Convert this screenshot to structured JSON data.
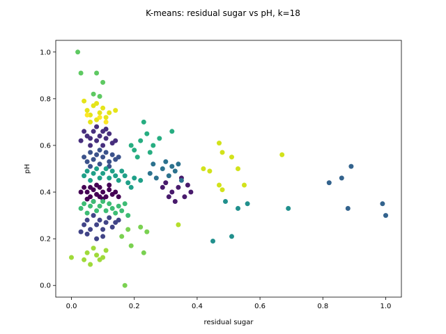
{
  "chart_data": {
    "type": "scatter",
    "title": "K-means: residual sugar vs pH, k=18",
    "xlabel": "residual sugar",
    "ylabel": "pH",
    "xlim": [
      -0.05,
      1.05
    ],
    "ylim": [
      -0.05,
      1.05
    ],
    "xticks": [
      0.0,
      0.2,
      0.4,
      0.6,
      0.8,
      1.0
    ],
    "xtick_labels": [
      "0.0",
      "0.2",
      "0.4",
      "0.6",
      "0.8",
      "1.0"
    ],
    "yticks": [
      0.0,
      0.2,
      0.4,
      0.6,
      0.8,
      1.0
    ],
    "ytick_labels": [
      "0.0",
      "0.2",
      "0.4",
      "0.6",
      "0.8",
      "1.0"
    ],
    "grid": false,
    "legend": "none",
    "colormap": "viridis",
    "clusters": [
      {
        "color": "#440154",
        "points": [
          [
            0.04,
            0.42
          ],
          [
            0.05,
            0.4
          ],
          [
            0.06,
            0.38
          ],
          [
            0.07,
            0.41
          ],
          [
            0.08,
            0.39
          ],
          [
            0.09,
            0.42
          ],
          [
            0.1,
            0.4
          ],
          [
            0.11,
            0.38
          ],
          [
            0.12,
            0.41
          ],
          [
            0.13,
            0.39
          ],
          [
            0.14,
            0.4
          ],
          [
            0.03,
            0.4
          ],
          [
            0.06,
            0.42
          ],
          [
            0.09,
            0.38
          ],
          [
            0.12,
            0.43
          ],
          [
            0.1,
            0.37
          ],
          [
            0.05,
            0.37
          ],
          [
            0.08,
            0.43
          ],
          [
            0.15,
            0.38
          ],
          [
            0.07,
            0.36
          ]
        ]
      },
      {
        "color": "#481a6c",
        "points": [
          [
            0.3,
            0.44
          ],
          [
            0.32,
            0.4
          ],
          [
            0.34,
            0.42
          ],
          [
            0.36,
            0.38
          ],
          [
            0.38,
            0.4
          ],
          [
            0.33,
            0.36
          ],
          [
            0.35,
            0.46
          ],
          [
            0.37,
            0.43
          ],
          [
            0.31,
            0.38
          ],
          [
            0.29,
            0.42
          ]
        ]
      },
      {
        "color": "#472f7d",
        "points": [
          [
            0.03,
            0.62
          ],
          [
            0.05,
            0.64
          ],
          [
            0.06,
            0.6
          ],
          [
            0.07,
            0.66
          ],
          [
            0.08,
            0.62
          ],
          [
            0.09,
            0.64
          ],
          [
            0.1,
            0.6
          ],
          [
            0.11,
            0.63
          ],
          [
            0.12,
            0.65
          ],
          [
            0.13,
            0.61
          ],
          [
            0.04,
            0.66
          ],
          [
            0.08,
            0.68
          ],
          [
            0.11,
            0.67
          ],
          [
            0.06,
            0.63
          ],
          [
            0.14,
            0.62
          ],
          [
            0.1,
            0.66
          ]
        ]
      },
      {
        "color": "#414487",
        "points": [
          [
            0.04,
            0.26
          ],
          [
            0.05,
            0.28
          ],
          [
            0.06,
            0.24
          ],
          [
            0.07,
            0.3
          ],
          [
            0.08,
            0.26
          ],
          [
            0.09,
            0.28
          ],
          [
            0.1,
            0.24
          ],
          [
            0.11,
            0.27
          ],
          [
            0.12,
            0.29
          ],
          [
            0.13,
            0.25
          ],
          [
            0.14,
            0.27
          ],
          [
            0.05,
            0.22
          ],
          [
            0.08,
            0.2
          ],
          [
            0.1,
            0.21
          ],
          [
            0.15,
            0.28
          ],
          [
            0.03,
            0.23
          ]
        ]
      },
      {
        "color": "#3b528b",
        "points": [
          [
            0.04,
            0.55
          ],
          [
            0.05,
            0.53
          ],
          [
            0.06,
            0.57
          ],
          [
            0.07,
            0.54
          ],
          [
            0.08,
            0.56
          ],
          [
            0.09,
            0.52
          ],
          [
            0.1,
            0.55
          ],
          [
            0.11,
            0.57
          ],
          [
            0.12,
            0.53
          ],
          [
            0.13,
            0.56
          ],
          [
            0.14,
            0.54
          ],
          [
            0.06,
            0.51
          ],
          [
            0.09,
            0.58
          ],
          [
            0.12,
            0.51
          ],
          [
            0.15,
            0.55
          ]
        ]
      },
      {
        "color": "#33638d",
        "points": [
          [
            0.82,
            0.44
          ],
          [
            0.86,
            0.46
          ],
          [
            0.89,
            0.51
          ],
          [
            0.88,
            0.33
          ],
          [
            0.99,
            0.35
          ],
          [
            1.0,
            0.3
          ]
        ]
      },
      {
        "color": "#2c728e",
        "points": [
          [
            0.25,
            0.48
          ],
          [
            0.27,
            0.46
          ],
          [
            0.29,
            0.5
          ],
          [
            0.31,
            0.47
          ],
          [
            0.33,
            0.49
          ],
          [
            0.35,
            0.45
          ],
          [
            0.3,
            0.53
          ],
          [
            0.32,
            0.51
          ],
          [
            0.26,
            0.52
          ],
          [
            0.34,
            0.52
          ]
        ]
      },
      {
        "color": "#21908d",
        "points": [
          [
            0.49,
            0.36
          ],
          [
            0.53,
            0.33
          ],
          [
            0.56,
            0.35
          ],
          [
            0.69,
            0.33
          ],
          [
            0.45,
            0.19
          ],
          [
            0.51,
            0.21
          ]
        ]
      },
      {
        "color": "#27ad81",
        "points": [
          [
            0.2,
            0.58
          ],
          [
            0.22,
            0.62
          ],
          [
            0.24,
            0.65
          ],
          [
            0.26,
            0.6
          ],
          [
            0.28,
            0.63
          ],
          [
            0.23,
            0.7
          ],
          [
            0.32,
            0.66
          ],
          [
            0.21,
            0.55
          ],
          [
            0.25,
            0.57
          ],
          [
            0.19,
            0.6
          ]
        ]
      },
      {
        "color": "#1fa088",
        "points": [
          [
            0.04,
            0.47
          ],
          [
            0.05,
            0.49
          ],
          [
            0.06,
            0.45
          ],
          [
            0.07,
            0.48
          ],
          [
            0.08,
            0.5
          ],
          [
            0.09,
            0.46
          ],
          [
            0.1,
            0.48
          ],
          [
            0.11,
            0.5
          ],
          [
            0.12,
            0.46
          ],
          [
            0.13,
            0.49
          ],
          [
            0.14,
            0.47
          ],
          [
            0.15,
            0.45
          ],
          [
            0.16,
            0.49
          ],
          [
            0.17,
            0.47
          ],
          [
            0.18,
            0.44
          ],
          [
            0.2,
            0.46
          ],
          [
            0.22,
            0.45
          ],
          [
            0.19,
            0.42
          ]
        ]
      },
      {
        "color": "#3dbc74",
        "points": [
          [
            0.03,
            0.33
          ],
          [
            0.04,
            0.35
          ],
          [
            0.05,
            0.31
          ],
          [
            0.06,
            0.34
          ],
          [
            0.07,
            0.36
          ],
          [
            0.08,
            0.32
          ],
          [
            0.09,
            0.34
          ],
          [
            0.1,
            0.36
          ],
          [
            0.11,
            0.32
          ],
          [
            0.12,
            0.35
          ],
          [
            0.13,
            0.33
          ],
          [
            0.14,
            0.31
          ],
          [
            0.15,
            0.34
          ],
          [
            0.16,
            0.32
          ],
          [
            0.17,
            0.35
          ],
          [
            0.18,
            0.3
          ]
        ]
      },
      {
        "color": "#5ec962",
        "points": [
          [
            0.02,
            1.0
          ],
          [
            0.03,
            0.91
          ],
          [
            0.08,
            0.91
          ],
          [
            0.1,
            0.87
          ],
          [
            0.09,
            0.81
          ],
          [
            0.07,
            0.82
          ]
        ]
      },
      {
        "color": "#7ad151",
        "points": [
          [
            0.16,
            0.21
          ],
          [
            0.18,
            0.24
          ],
          [
            0.19,
            0.17
          ],
          [
            0.22,
            0.25
          ],
          [
            0.23,
            0.14
          ],
          [
            0.24,
            0.23
          ],
          [
            0.17,
            0.0
          ]
        ]
      },
      {
        "color": "#9fda3a",
        "points": [
          [
            0.0,
            0.12
          ],
          [
            0.04,
            0.11
          ],
          [
            0.05,
            0.14
          ],
          [
            0.06,
            0.09
          ],
          [
            0.08,
            0.13
          ],
          [
            0.09,
            0.11
          ],
          [
            0.1,
            0.12
          ],
          [
            0.07,
            0.16
          ],
          [
            0.11,
            0.15
          ]
        ]
      },
      {
        "color": "#b5de2b",
        "points": [
          [
            0.34,
            0.26
          ]
        ]
      },
      {
        "color": "#d2e21b",
        "points": [
          [
            0.42,
            0.5
          ],
          [
            0.44,
            0.49
          ],
          [
            0.47,
            0.61
          ],
          [
            0.48,
            0.57
          ],
          [
            0.51,
            0.55
          ],
          [
            0.53,
            0.5
          ],
          [
            0.55,
            0.43
          ],
          [
            0.47,
            0.43
          ],
          [
            0.48,
            0.41
          ],
          [
            0.67,
            0.56
          ]
        ]
      },
      {
        "color": "#e5e419",
        "points": [
          [
            0.04,
            0.79
          ],
          [
            0.05,
            0.75
          ],
          [
            0.06,
            0.73
          ],
          [
            0.07,
            0.77
          ],
          [
            0.08,
            0.71
          ],
          [
            0.09,
            0.74
          ],
          [
            0.1,
            0.76
          ],
          [
            0.11,
            0.72
          ],
          [
            0.06,
            0.7
          ],
          [
            0.14,
            0.75
          ],
          [
            0.08,
            0.78
          ],
          [
            0.12,
            0.74
          ]
        ]
      },
      {
        "color": "#fde725",
        "points": [
          [
            0.05,
            0.73
          ],
          [
            0.11,
            0.7
          ],
          [
            0.09,
            0.72
          ]
        ]
      }
    ]
  }
}
